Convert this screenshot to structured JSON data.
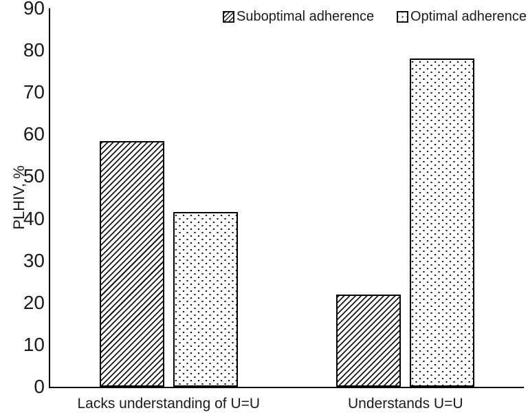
{
  "figure": {
    "background": "#ffffff",
    "text_color": "#1a1a1a",
    "axis_color": "#000000",
    "bar_fill": "#ffffff",
    "pattern_color": "#161616"
  },
  "chart_data": {
    "type": "bar",
    "title": "",
    "categories": [
      "Lacks understanding of U=U",
      "Understands U=U"
    ],
    "series": [
      {
        "name": "Suboptimal adherence",
        "pattern": "diagonal-hatch",
        "values": [
          58.5,
          22
        ]
      },
      {
        "name": "Optimal adherence",
        "pattern": "dots",
        "values": [
          41.5,
          78
        ]
      }
    ],
    "xlabel": "",
    "ylabel": "PLHIV, %",
    "ylim": [
      0,
      90
    ],
    "yticks": [
      0,
      10,
      20,
      30,
      40,
      50,
      60,
      70,
      80,
      90
    ],
    "grid": false,
    "legend_position": "top-center"
  }
}
